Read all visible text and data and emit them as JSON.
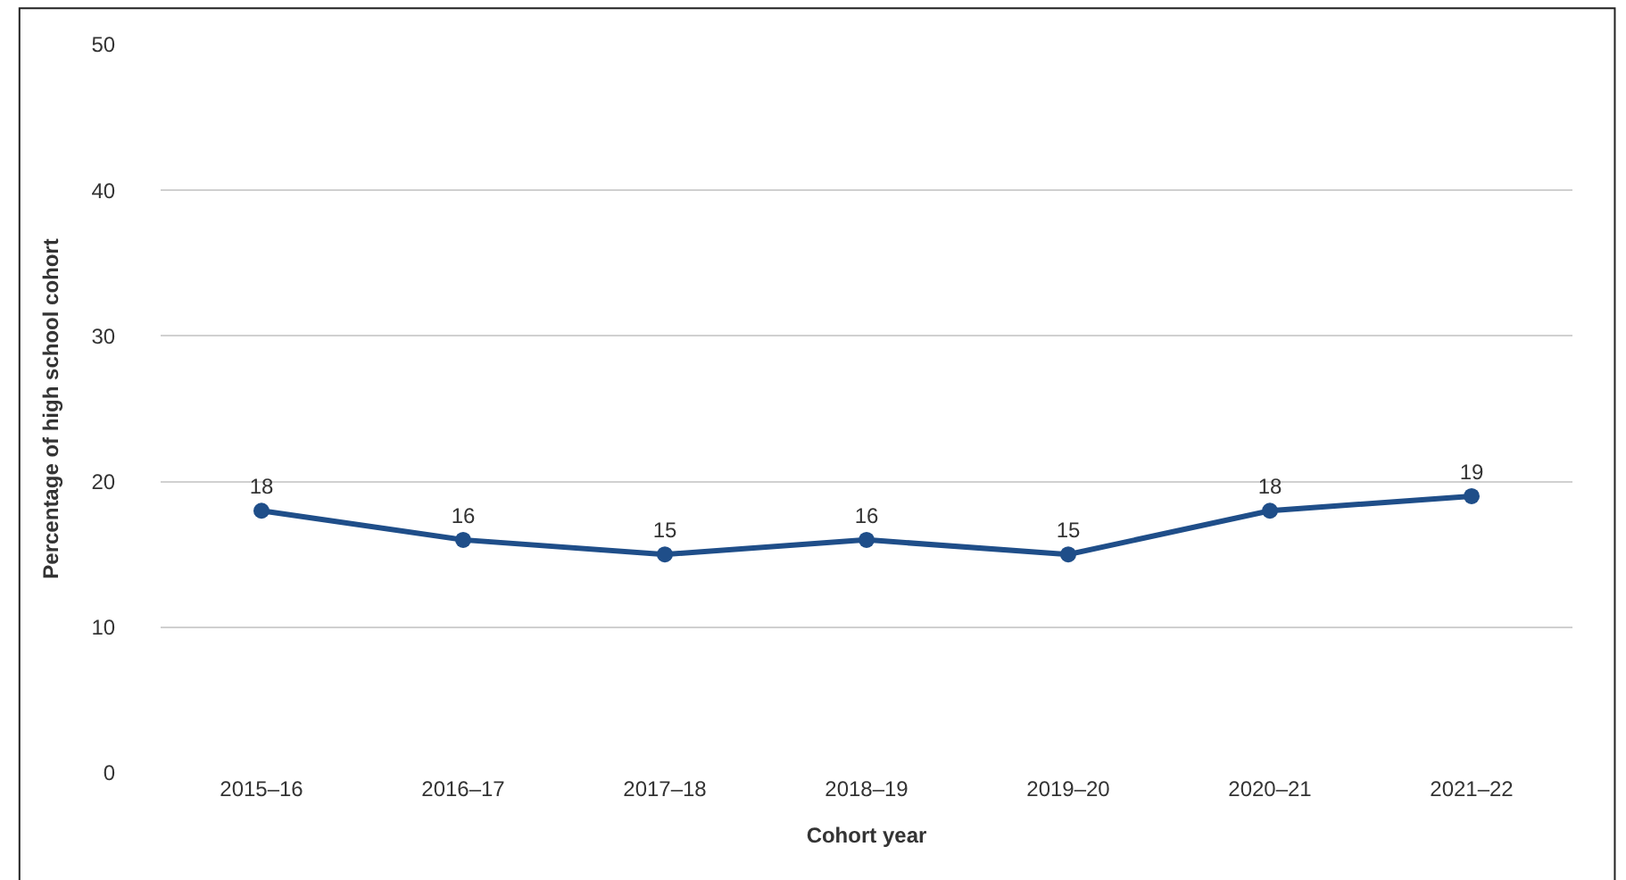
{
  "chart_data": {
    "type": "line",
    "xlabel": "Cohort year",
    "ylabel": "Percentage of high school cohort",
    "categories": [
      "2015–16",
      "2016–17",
      "2017–18",
      "2018–19",
      "2019–20",
      "2020–21",
      "2021–22"
    ],
    "series": [
      {
        "color": "#1f4e89",
        "values": [
          18,
          16,
          15,
          16,
          15,
          18,
          19
        ]
      }
    ],
    "ylim": [
      0,
      50
    ],
    "yticks": [
      0,
      10,
      20,
      30,
      40,
      50
    ],
    "grid": "y",
    "data_labels": true,
    "marker": "circle",
    "line_style": "solid",
    "legend": false
  }
}
